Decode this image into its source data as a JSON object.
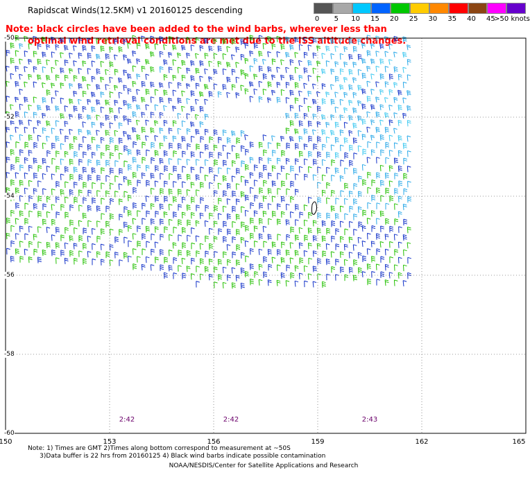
{
  "title": "Rapidscat Winds(12.5KM) v1 20160125 descending",
  "note": {
    "line1": "Note: black circles have been added to the wind barbs, wherever less than",
    "line2": "optimal wind retrieval conditions are met due to the ISS altitude changes."
  },
  "legend": {
    "unit_label": ">50 knots",
    "labels": [
      "0",
      "5",
      "10",
      "15",
      "20",
      "25",
      "30",
      "35",
      "40",
      "45",
      ">50 knots"
    ],
    "colors": [
      "#555555",
      "#a8a8a8",
      "#00c8ff",
      "#0064ff",
      "#00c800",
      "#ffcc00",
      "#ff8800",
      "#ff0000",
      "#8b4513",
      "#ff00ff",
      "#6600cc"
    ]
  },
  "map": {
    "lon_labels": [
      "150",
      "153",
      "156",
      "159",
      "162",
      "165"
    ],
    "lat_labels": [
      "-50",
      "-52",
      "-54",
      "-56",
      "-58",
      "-60"
    ],
    "time_labels": [
      {
        "lon": 153.5,
        "text": "2:42"
      },
      {
        "lon": 156.5,
        "text": "2:42"
      },
      {
        "lon": 160.5,
        "text": "2:43"
      }
    ],
    "colors": {
      "grid": "#777777",
      "barb_green": "#22c000",
      "barb_blue": "#1030c8",
      "barb_lightblue": "#28a8e8",
      "barb_cyan": "#3cc8f0"
    }
  },
  "footnote": {
    "line1": "Note: 1) Times are GMT 2)Times along bottom correspond to measurement at ~50S",
    "line2": "3)Data buffer is 22 hrs from 20160125 4) Black wind barbs indicate possible contamination"
  },
  "credit": "NOAA/NESDIS/Center for Satellite Applications and Research"
}
